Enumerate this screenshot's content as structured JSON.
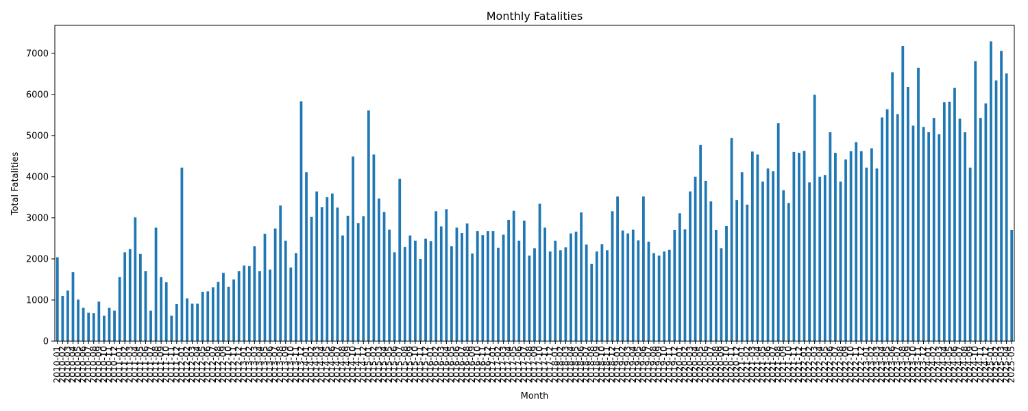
{
  "chart_data": {
    "type": "bar",
    "title": "Monthly Fatalities",
    "xlabel": "Month",
    "ylabel": "Total Fatalities",
    "ylim": [
      0,
      7680
    ],
    "yticks": [
      0,
      1000,
      2000,
      3000,
      4000,
      5000,
      6000,
      7000
    ],
    "grid": false,
    "bar_color": "#1f77b4",
    "series": [
      {
        "values": [
          2040,
          1100,
          1230,
          1680,
          1010,
          810,
          690,
          680,
          960,
          620,
          810,
          740,
          1560,
          2160,
          2240,
          3010,
          2120,
          1700,
          740,
          2760,
          1560,
          1430,
          620,
          900,
          4220,
          1040,
          910,
          910,
          1200,
          1210,
          1310,
          1440,
          1660,
          1320,
          1500,
          1700,
          1840,
          1830,
          2310,
          1700,
          2610,
          1740,
          2740,
          3300,
          2440,
          1790,
          2140,
          5830,
          4110,
          3020,
          3640,
          3260,
          3500,
          3590,
          3250,
          2570,
          3050,
          4490,
          2870,
          3040,
          5610,
          4540,
          3470,
          3140,
          2710,
          2160,
          3950,
          2290,
          2570,
          2440,
          2000,
          2490,
          2430,
          3160,
          2790,
          3210,
          2310,
          2760,
          2630,
          2860,
          2130,
          2680,
          2580,
          2680,
          2680,
          2270,
          2590,
          2950,
          3170,
          2440,
          2930,
          2080,
          2260,
          3340,
          2760,
          2180,
          2440,
          2210,
          2280,
          2620,
          2660,
          3130,
          2350,
          1880,
          2180,
          2360,
          2210,
          3160,
          3520,
          2690,
          2620,
          2710,
          2450,
          3520,
          2420,
          2140,
          2080,
          2180,
          2220,
          2700,
          3110,
          2720,
          3640,
          4000,
          4770,
          3900,
          3400,
          2700,
          2260,
          2800,
          4940,
          3430,
          4110,
          3320,
          4610,
          4540,
          3880,
          4200,
          4130,
          5300,
          3670,
          3360,
          4600,
          4580,
          4630,
          3860,
          5990,
          4000,
          4040,
          5080,
          4580,
          3880,
          4420,
          4620,
          4840,
          4620,
          4220,
          4690,
          4200,
          5440,
          5640,
          6540,
          5520,
          7180,
          6180,
          5240,
          6650,
          5210,
          5080,
          5430,
          5030,
          5810,
          5820,
          6160,
          5410,
          5080,
          4220,
          6810,
          5430,
          5780,
          7290,
          6340,
          7060,
          6510,
          2700
        ]
      }
    ],
    "x_start": "2010-01",
    "x_end": "2025-05"
  }
}
